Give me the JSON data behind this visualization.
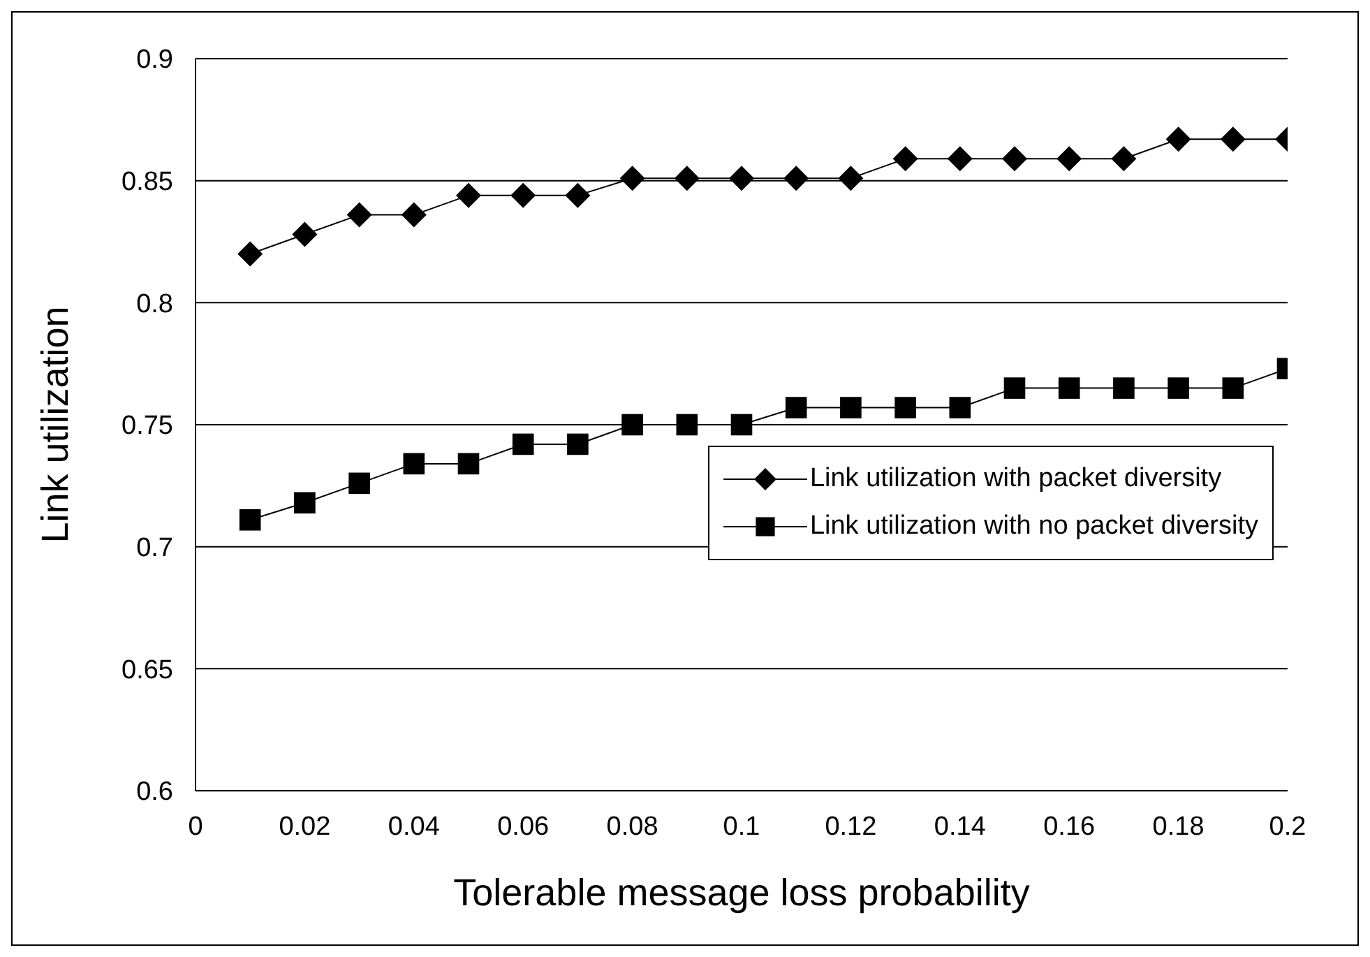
{
  "chart_data": {
    "type": "line",
    "xlabel": "Tolerable message loss probability",
    "ylabel": "Link utilization",
    "x": [
      0.01,
      0.02,
      0.03,
      0.04,
      0.05,
      0.06,
      0.07,
      0.08,
      0.09,
      0.1,
      0.11,
      0.12,
      0.13,
      0.14,
      0.15,
      0.16,
      0.17,
      0.18,
      0.19,
      0.2
    ],
    "series": [
      {
        "name": "Link utilization with packet diversity",
        "color": "#000000",
        "marker": "diamond",
        "values": [
          0.82,
          0.828,
          0.836,
          0.836,
          0.844,
          0.844,
          0.844,
          0.851,
          0.851,
          0.851,
          0.851,
          0.851,
          0.859,
          0.859,
          0.859,
          0.859,
          0.859,
          0.867,
          0.867,
          0.867
        ]
      },
      {
        "name": "Link utilization with no packet diversity",
        "color": "#000000",
        "marker": "square",
        "values": [
          0.711,
          0.718,
          0.726,
          0.734,
          0.734,
          0.742,
          0.742,
          0.75,
          0.75,
          0.75,
          0.757,
          0.757,
          0.757,
          0.757,
          0.765,
          0.765,
          0.765,
          0.765,
          0.765,
          0.773
        ]
      }
    ],
    "xlim": [
      0,
      0.2
    ],
    "xticks": [
      0,
      0.02,
      0.04,
      0.06,
      0.08,
      0.1,
      0.12,
      0.14,
      0.16,
      0.18,
      0.2
    ],
    "ylim": [
      0.6,
      0.9
    ],
    "yticks": [
      0.6,
      0.65,
      0.7,
      0.75,
      0.8,
      0.85,
      0.9
    ],
    "grid": "y",
    "legend": "center right",
    "line_style": "solid"
  }
}
